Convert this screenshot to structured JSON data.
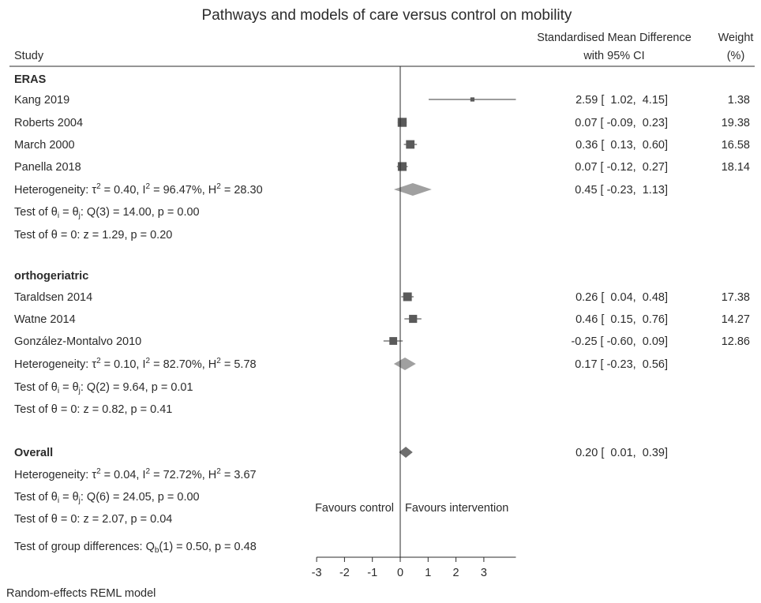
{
  "chart_data": {
    "type": "forest",
    "title": "Pathways and models of care versus control on mobility",
    "headers": {
      "study": "Study",
      "effect_line1": "Standardised Mean Difference",
      "effect_line2": "with 95% CI",
      "weight_line1": "Weight",
      "weight_line2": "(%)"
    },
    "groups": [
      {
        "name": "ERAS",
        "studies": [
          {
            "study": "Kang 2019",
            "smd": 2.59,
            "lo": 1.02,
            "hi": 4.15,
            "ci_text": "2.59 [  1.02,  4.15]",
            "weight": "1.38"
          },
          {
            "study": "Roberts 2004",
            "smd": 0.07,
            "lo": -0.09,
            "hi": 0.23,
            "ci_text": "0.07 [ -0.09,  0.23]",
            "weight": "19.38"
          },
          {
            "study": "March 2000",
            "smd": 0.36,
            "lo": 0.13,
            "hi": 0.6,
            "ci_text": "0.36 [  0.13,  0.60]",
            "weight": "16.58"
          },
          {
            "study": "Panella 2018",
            "smd": 0.07,
            "lo": -0.12,
            "hi": 0.27,
            "ci_text": "0.07 [ -0.12,  0.27]",
            "weight": "18.14"
          }
        ],
        "pooled": {
          "smd": 0.45,
          "lo": -0.23,
          "hi": 1.13,
          "ci_text": "0.45 [ -0.23,  1.13]"
        },
        "heterogeneity": {
          "prefix": "Heterogeneity: τ",
          "tau2": " = 0.40, I",
          "i2": " = 96.47%, H",
          "h2": " = 28.30"
        },
        "homogeneity": {
          "prefix": "Test of θ",
          "i": "i",
          "eq": " = θ",
          "j": "j",
          "rest": ": Q(3) = 14.00, p = 0.00"
        },
        "effect_test": "Test of θ = 0: z = 1.29, p = 0.20"
      },
      {
        "name": "orthogeriatric",
        "studies": [
          {
            "study": "Taraldsen 2014",
            "smd": 0.26,
            "lo": 0.04,
            "hi": 0.48,
            "ci_text": "0.26 [  0.04,  0.48]",
            "weight": "17.38"
          },
          {
            "study": "Watne 2014",
            "smd": 0.46,
            "lo": 0.15,
            "hi": 0.76,
            "ci_text": "0.46 [  0.15,  0.76]",
            "weight": "14.27"
          },
          {
            "study": "González-Montalvo 2010",
            "smd": -0.25,
            "lo": -0.6,
            "hi": 0.09,
            "ci_text": "-0.25 [ -0.60,  0.09]",
            "weight": "12.86"
          }
        ],
        "pooled": {
          "smd": 0.17,
          "lo": -0.23,
          "hi": 0.56,
          "ci_text": "0.17 [ -0.23,  0.56]"
        },
        "heterogeneity": {
          "prefix": "Heterogeneity: τ",
          "tau2": " = 0.10, I",
          "i2": " = 82.70%, H",
          "h2": " = 5.78"
        },
        "homogeneity": {
          "prefix": "Test of θ",
          "i": "i",
          "eq": " = θ",
          "j": "j",
          "rest": ": Q(2) = 9.64, p = 0.01"
        },
        "effect_test": "Test of θ = 0: z = 0.82, p = 0.41"
      }
    ],
    "overall": {
      "name": "Overall",
      "smd": 0.2,
      "lo": 0.01,
      "hi": 0.39,
      "ci_text": "0.20 [  0.01,  0.39]",
      "heterogeneity": {
        "prefix": "Heterogeneity: τ",
        "tau2": " = 0.04, I",
        "i2": " = 72.72%, H",
        "h2": " = 3.67"
      },
      "homogeneity": {
        "prefix": "Test of θ",
        "i": "i",
        "eq": " = θ",
        "j": "j",
        "rest": ": Q(6) = 24.05, p = 0.00"
      },
      "effect_test": "Test of θ = 0: z = 2.07, p = 0.04"
    },
    "group_diff": {
      "prefix": "Test of group differences: Q",
      "sub": "b",
      "rest": "(1) = 0.50, p = 0.48"
    },
    "favours_left": "Favours control",
    "favours_right": "Favours intervention",
    "x_ticks": [
      -3,
      -2,
      -1,
      0,
      1,
      2,
      3
    ],
    "xlim": [
      -3.0,
      4.15
    ],
    "null_line": 0,
    "note": "Random-effects REML model",
    "colors": {
      "marker": "#5a5a5a",
      "diamond_group": "#a0a0a0",
      "diamond_overall": "#6e6e6e",
      "line": "#3a3a3a",
      "text": "#2b2b2b"
    }
  }
}
